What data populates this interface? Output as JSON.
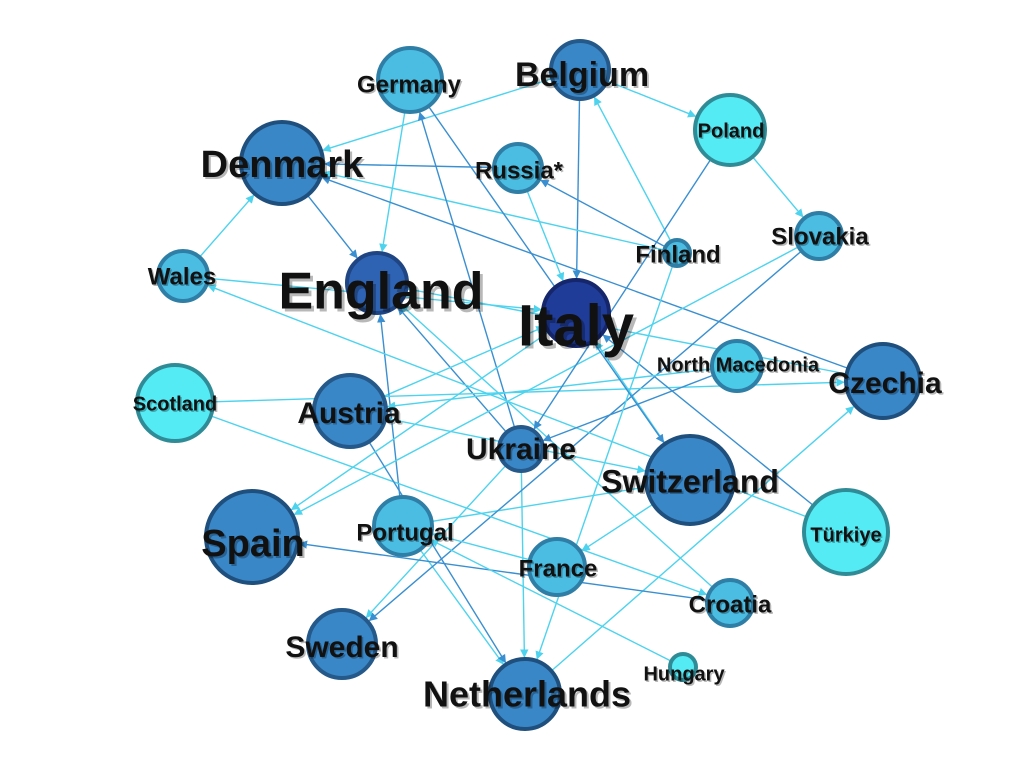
{
  "network": {
    "nodes": [
      {
        "id": "Italy",
        "label": "Italy",
        "fill": "#1f3c99",
        "stroke": "#15266b"
      },
      {
        "id": "England",
        "label": "England",
        "fill": "#2e63b4",
        "stroke": "#1f4583"
      },
      {
        "id": "Denmark",
        "label": "Denmark",
        "fill": "#3a87c8",
        "stroke": "#1f4f7c"
      },
      {
        "id": "Belgium",
        "label": "Belgium",
        "fill": "#3a87c8",
        "stroke": "#24598a"
      },
      {
        "id": "Germany",
        "label": "Germany",
        "fill": "#4bbde3",
        "stroke": "#2e7ea6"
      },
      {
        "id": "Russia",
        "label": "Russia*",
        "fill": "#4bbde3",
        "stroke": "#2e7ea6"
      },
      {
        "id": "Poland",
        "label": "Poland",
        "fill": "#55ebf5",
        "stroke": "#2f8c97"
      },
      {
        "id": "Slovakia",
        "label": "Slovakia",
        "fill": "#4bbde3",
        "stroke": "#2e7ea6"
      },
      {
        "id": "Finland",
        "label": "Finland",
        "fill": "#4bbde3",
        "stroke": "#2e7ea6"
      },
      {
        "id": "Wales",
        "label": "Wales",
        "fill": "#4bbde3",
        "stroke": "#2e7ea6"
      },
      {
        "id": "Scotland",
        "label": "Scotland",
        "fill": "#55ebf5",
        "stroke": "#2f8c97"
      },
      {
        "id": "NorthMacedonia",
        "label": "North Macedonia",
        "fill": "#4bcbe8",
        "stroke": "#2e7ea6"
      },
      {
        "id": "Czechia",
        "label": "Czechia",
        "fill": "#3a87c8",
        "stroke": "#1f4f7c"
      },
      {
        "id": "Austria",
        "label": "Austria",
        "fill": "#3a87c8",
        "stroke": "#24598a"
      },
      {
        "id": "Ukraine",
        "label": "Ukraine",
        "fill": "#3a87c8",
        "stroke": "#24598a"
      },
      {
        "id": "Switzerland",
        "label": "Switzerland",
        "fill": "#3a87c8",
        "stroke": "#1f4f7c"
      },
      {
        "id": "Turkiye",
        "label": "Türkiye",
        "fill": "#55ebf5",
        "stroke": "#2f8c97"
      },
      {
        "id": "Spain",
        "label": "Spain",
        "fill": "#3a87c8",
        "stroke": "#1f4f7c"
      },
      {
        "id": "Portugal",
        "label": "Portugal",
        "fill": "#4bbde3",
        "stroke": "#2e7ea6"
      },
      {
        "id": "France",
        "label": "France",
        "fill": "#4bbde3",
        "stroke": "#2e7ea6"
      },
      {
        "id": "Croatia",
        "label": "Croatia",
        "fill": "#4bbde3",
        "stroke": "#2e7ea6"
      },
      {
        "id": "Sweden",
        "label": "Sweden",
        "fill": "#3a87c8",
        "stroke": "#24598a"
      },
      {
        "id": "Hungary",
        "label": "Hungary",
        "fill": "#55ebf5",
        "stroke": "#2f8c97"
      },
      {
        "id": "Netherlands",
        "label": "Netherlands",
        "fill": "#3a87c8",
        "stroke": "#1f4f7c"
      }
    ],
    "edges": [
      {
        "from": "Denmark",
        "to": "England"
      },
      {
        "from": "Wales",
        "to": "Denmark"
      },
      {
        "from": "Germany",
        "to": "England"
      },
      {
        "from": "Belgium",
        "to": "Italy"
      },
      {
        "from": "Belgium",
        "to": "Denmark"
      },
      {
        "from": "Belgium",
        "to": "Poland"
      },
      {
        "from": "Russia",
        "to": "Denmark"
      },
      {
        "from": "Poland",
        "to": "Slovakia"
      },
      {
        "from": "Finland",
        "to": "Belgium"
      },
      {
        "from": "Finland",
        "to": "Russia"
      },
      {
        "from": "Finland",
        "to": "Denmark"
      },
      {
        "from": "Wales",
        "to": "Italy"
      },
      {
        "from": "Czechia",
        "to": "Denmark"
      },
      {
        "from": "Czechia",
        "to": "England"
      },
      {
        "from": "Switzerland",
        "to": "Italy"
      },
      {
        "from": "Ukraine",
        "to": "England"
      },
      {
        "from": "Ukraine",
        "to": "Netherlands"
      },
      {
        "from": "Ukraine",
        "to": "Sweden"
      },
      {
        "from": "Ukraine",
        "to": "Germany"
      },
      {
        "from": "Austria",
        "to": "Italy"
      },
      {
        "from": "Netherlands",
        "to": "Czechia"
      },
      {
        "from": "Portugal",
        "to": "England"
      },
      {
        "from": "Portugal",
        "to": "Netherlands"
      },
      {
        "from": "Portugal",
        "to": "Switzerland"
      },
      {
        "from": "Croatia",
        "to": "Spain"
      },
      {
        "from": "Croatia",
        "to": "England"
      },
      {
        "from": "Slovakia",
        "to": "Spain"
      },
      {
        "from": "Slovakia",
        "to": "Sweden"
      },
      {
        "from": "Scotland",
        "to": "Czechia"
      },
      {
        "from": "Scotland",
        "to": "Croatia"
      },
      {
        "from": "Turkiye",
        "to": "Italy"
      },
      {
        "from": "Turkiye",
        "to": "Wales"
      },
      {
        "from": "NorthMacedonia",
        "to": "Austria"
      },
      {
        "from": "NorthMacedonia",
        "to": "Ukraine"
      },
      {
        "from": "Hungary",
        "to": "Portugal"
      },
      {
        "from": "France",
        "to": "Portugal"
      },
      {
        "from": "Austria",
        "to": "Netherlands"
      },
      {
        "from": "Austria",
        "to": "Switzerland"
      },
      {
        "from": "Finland",
        "to": "Netherlands"
      },
      {
        "from": "Poland",
        "to": "Ukraine"
      },
      {
        "from": "Italy",
        "to": "Spain"
      },
      {
        "from": "Switzerland",
        "to": "France"
      },
      {
        "from": "Germany",
        "to": "Switzerland"
      },
      {
        "from": "Russia",
        "to": "Italy"
      }
    ]
  }
}
